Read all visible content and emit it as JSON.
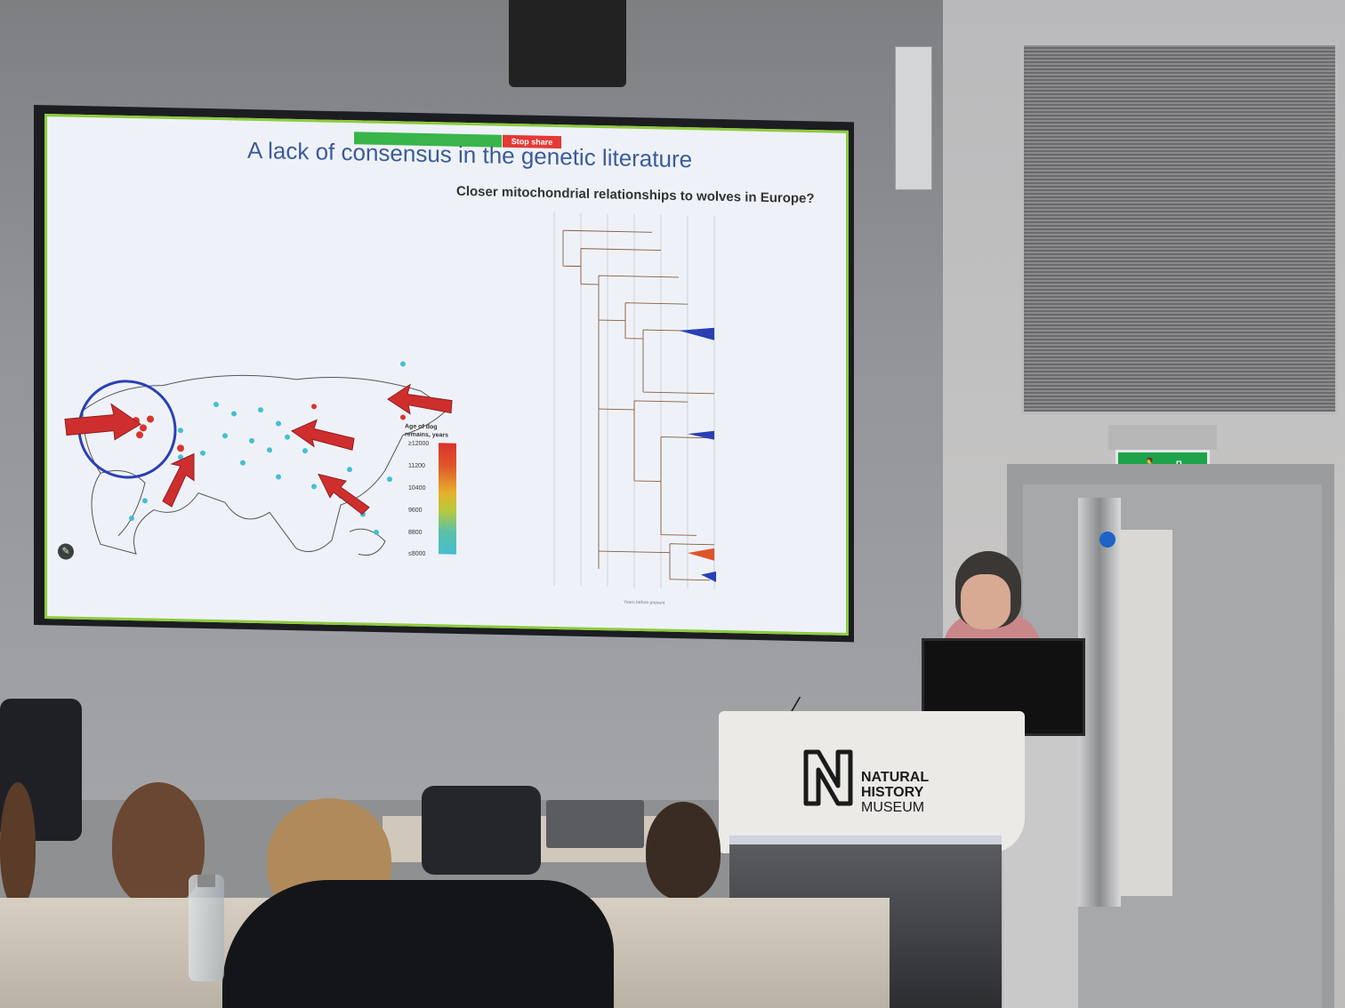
{
  "slide": {
    "share_label": "",
    "stop_share_label": "Stop share",
    "title": "A lack of consensus in the genetic literature",
    "subtitle": "Closer mitochondrial relationships to wolves in Europe?",
    "legend": {
      "title": "Age of dog remains, years",
      "ticks": [
        "≥12000",
        "11200",
        "10400",
        "9600",
        "8800",
        "≤8000"
      ]
    },
    "tree_axis_label": "Years before present"
  },
  "podium": {
    "brand_line1": "NATURAL",
    "brand_line2": "HISTORY",
    "brand_line3": "MUSEUM"
  },
  "colors": {
    "slide_title": "#3c5a9a",
    "screen_border": "#8ecb3f",
    "arrow": "#cf2e2e",
    "circle": "#2b3fb5",
    "exit_sign": "#1fa34a"
  },
  "icons": {
    "edit": "pencil-icon",
    "exit": "running-man-exit-icon"
  }
}
